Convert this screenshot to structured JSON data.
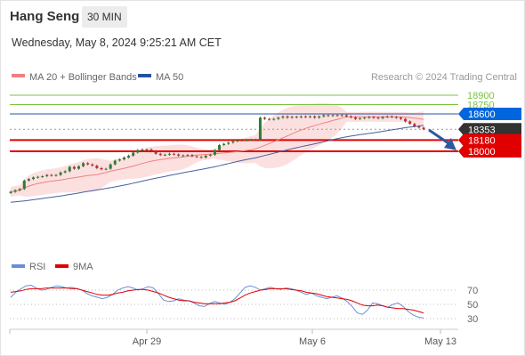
{
  "header": {
    "instrument": "Hang Seng",
    "timeframe": "30 MIN",
    "datetime": "Wednesday, May 8, 2024 9:25:21 AM CET"
  },
  "legend": {
    "ma20": "MA 20 + Bollinger Bands",
    "ma50": "MA 50",
    "credit": "Research © 2024 Trading Central",
    "rsi": "RSI",
    "rsi_ma": "9MA"
  },
  "colors": {
    "resistance_green": "#7dc242",
    "current_line": "#2850a0",
    "support_red": "#e00000",
    "price_tag_dark": "#333333",
    "ma20": "#f08080",
    "ma50": "#4a5fa0",
    "band_fill": "#fbdada",
    "candle_up": "#2e7d32",
    "candle_down": "#c62828",
    "rsi_line": "#6a8fd8",
    "rsi_ma": "#e00000",
    "arrow": "#2a5aa0"
  },
  "chart_data": [
    {
      "type": "candlestick",
      "title": "Hang Seng",
      "x_ticks": [
        "Apr 29",
        "May 6",
        "May 13"
      ],
      "y_range": [
        17000,
        19000
      ],
      "levels": [
        {
          "value": 18900,
          "label": "18900",
          "kind": "resistance",
          "color": "#7dc242"
        },
        {
          "value": 18750,
          "label": "18750",
          "kind": "resistance",
          "color": "#7dc242"
        },
        {
          "value": 18600,
          "label": "18600",
          "kind": "pivot",
          "color": "#2850a0"
        },
        {
          "value": 18353,
          "label": "18353",
          "kind": "last_price",
          "color": "#333333"
        },
        {
          "value": 18180,
          "label": "18180",
          "kind": "support",
          "color": "#e00000"
        },
        {
          "value": 18000,
          "label": "18000",
          "kind": "support",
          "color": "#e00000"
        }
      ],
      "close": [
        17350,
        17375,
        17395,
        17530,
        17555,
        17580,
        17590,
        17600,
        17620,
        17610,
        17620,
        17660,
        17680,
        17750,
        17720,
        17760,
        17810,
        17790,
        17770,
        17730,
        17710,
        17720,
        17790,
        17850,
        17870,
        17900,
        17930,
        17980,
        18020,
        18030,
        18030,
        18000,
        17960,
        17940,
        17945,
        17960,
        17950,
        17930,
        17935,
        17940,
        17920,
        17910,
        17900,
        17930,
        17945,
        18020,
        18100,
        18120,
        18140,
        18160,
        18180,
        18175,
        18180,
        18185,
        18180,
        18540,
        18520,
        18510,
        18520,
        18540,
        18560,
        18540,
        18555,
        18545,
        18560,
        18550,
        18560,
        18540,
        18560,
        18580,
        18570,
        18580,
        18575,
        18580,
        18560,
        18545,
        18520,
        18530,
        18540,
        18550,
        18540,
        18530,
        18550,
        18560,
        18550,
        18540,
        18520,
        18480,
        18440,
        18400,
        18380,
        18353
      ],
      "series": [
        {
          "name": "MA 20 + Bollinger Bands"
        },
        {
          "name": "MA 50"
        }
      ]
    },
    {
      "type": "line",
      "title": "RSI",
      "y_ticks": [
        70,
        50,
        30
      ],
      "series": [
        {
          "name": "RSI",
          "values": [
            60,
            67,
            72,
            76,
            77,
            73,
            70,
            71,
            74,
            76,
            75,
            73,
            74,
            72,
            70,
            65,
            62,
            60,
            58,
            60,
            64,
            70,
            73,
            75,
            73,
            70,
            72,
            75,
            73,
            65,
            56,
            54,
            55,
            58,
            56,
            55,
            52,
            48,
            47,
            51,
            54,
            52,
            50,
            53,
            58,
            66,
            74,
            76,
            74,
            70,
            72,
            74,
            72,
            71,
            73,
            72,
            70,
            67,
            64,
            66,
            62,
            60,
            58,
            60,
            62,
            59,
            54,
            47,
            38,
            36,
            42,
            52,
            51,
            48,
            46,
            50,
            52,
            47,
            40,
            35,
            32,
            31
          ]
        },
        {
          "name": "9MA",
          "values": [
            67,
            68,
            69,
            71,
            72,
            72,
            72,
            73,
            73,
            73,
            73,
            73,
            72,
            72,
            70,
            68,
            66,
            64,
            63,
            63,
            64,
            66,
            67,
            69,
            70,
            71,
            71,
            70,
            68,
            66,
            63,
            60,
            58,
            56,
            55,
            55,
            53,
            52,
            51,
            51,
            51,
            51,
            52,
            53,
            55,
            59,
            63,
            66,
            68,
            70,
            71,
            72,
            72,
            72,
            72,
            71,
            70,
            69,
            67,
            66,
            65,
            63,
            61,
            60,
            59,
            58,
            57,
            55,
            52,
            49,
            48,
            48,
            49,
            48,
            46,
            45,
            44,
            44,
            43,
            42,
            40,
            38
          ]
        }
      ]
    }
  ]
}
